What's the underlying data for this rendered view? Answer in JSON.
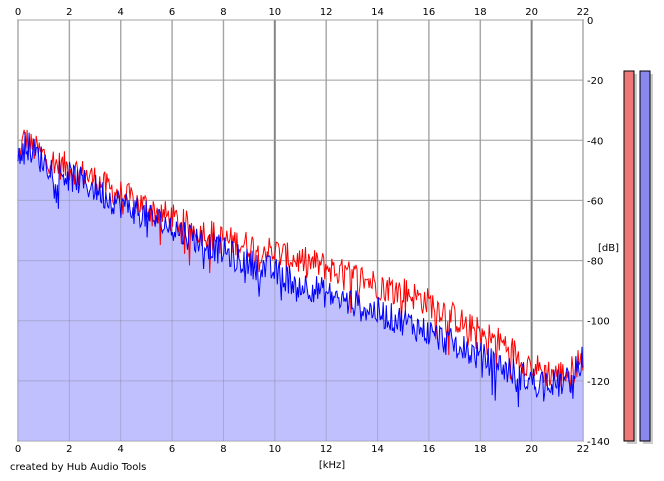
{
  "chart_data": {
    "type": "area",
    "title": "",
    "xlabel": "[kHz]",
    "ylabel": "[dB]",
    "xlim": [
      0,
      22
    ],
    "ylim": [
      -140,
      0
    ],
    "x_ticks": [
      0,
      2,
      4,
      6,
      8,
      10,
      12,
      14,
      16,
      18,
      20,
      22
    ],
    "y_ticks": [
      0,
      -20,
      -40,
      -60,
      -80,
      -100,
      -120,
      -140
    ],
    "grid": true,
    "series": [
      {
        "name": "",
        "color": "#ff0000",
        "x": [
          0,
          0.25,
          0.5,
          1,
          1.5,
          2,
          2.5,
          3,
          3.5,
          4,
          4.5,
          5,
          5.5,
          6,
          6.5,
          7,
          7.5,
          8,
          8.5,
          9,
          9.5,
          10,
          10.5,
          11,
          11.5,
          12,
          12.5,
          13,
          13.5,
          14,
          14.5,
          15,
          15.5,
          16,
          16.5,
          17,
          17.5,
          18,
          18.5,
          19,
          19.5,
          20,
          20.5,
          21,
          21.5,
          22
        ],
        "y": [
          -47,
          -39,
          -42,
          -45,
          -48,
          -49,
          -51,
          -53,
          -56,
          -58,
          -60,
          -62,
          -64,
          -66,
          -68,
          -70,
          -71,
          -73,
          -74,
          -75,
          -76,
          -77,
          -79,
          -80,
          -81,
          -82,
          -84,
          -85,
          -86,
          -88,
          -89,
          -90,
          -92,
          -94,
          -96,
          -99,
          -102,
          -104,
          -106,
          -108,
          -112,
          -115,
          -117,
          -118,
          -117,
          -112
        ]
      },
      {
        "name": "",
        "color": "#0000ff",
        "x": [
          0,
          0.25,
          0.5,
          1,
          1.5,
          2,
          2.5,
          3,
          3.5,
          4,
          4.5,
          5,
          5.5,
          6,
          6.5,
          7,
          7.5,
          8,
          8.5,
          9,
          9.5,
          10,
          10.5,
          11,
          11.5,
          12,
          12.5,
          13,
          13.5,
          14,
          14.5,
          15,
          15.5,
          16,
          16.5,
          17,
          17.5,
          18,
          18.5,
          19,
          19.5,
          20,
          20.5,
          21,
          21.5,
          22
        ],
        "y": [
          -48,
          -40,
          -43,
          -47,
          -50,
          -52,
          -54,
          -56,
          -59,
          -61,
          -63,
          -65,
          -67,
          -69,
          -71,
          -73,
          -75,
          -77,
          -79,
          -81,
          -82,
          -84,
          -86,
          -88,
          -89,
          -91,
          -93,
          -94,
          -96,
          -97,
          -99,
          -100,
          -102,
          -104,
          -106,
          -108,
          -110,
          -112,
          -114,
          -116,
          -118,
          -120,
          -120,
          -121,
          -120,
          -112
        ]
      }
    ],
    "level_meters": [
      {
        "color": "#ee7777",
        "level": 0.9
      },
      {
        "color": "#8888ee",
        "level": 0.9
      }
    ],
    "fill_color": "#c0c0ff"
  },
  "footer": {
    "credit": "created by Hub Audio Tools"
  }
}
